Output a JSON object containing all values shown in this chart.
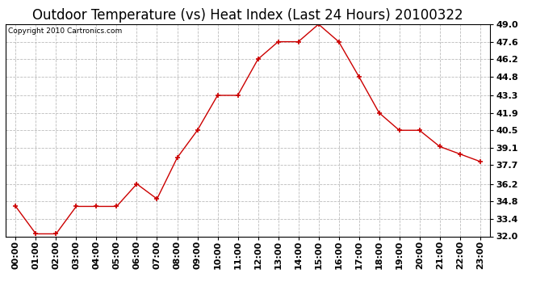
{
  "title": "Outdoor Temperature (vs) Heat Index (Last 24 Hours) 20100322",
  "copyright": "Copyright 2010 Cartronics.com",
  "x_labels": [
    "00:00",
    "01:00",
    "02:00",
    "03:00",
    "04:00",
    "05:00",
    "06:00",
    "07:00",
    "08:00",
    "09:00",
    "10:00",
    "11:00",
    "12:00",
    "13:00",
    "14:00",
    "15:00",
    "16:00",
    "17:00",
    "18:00",
    "19:00",
    "20:00",
    "21:00",
    "22:00",
    "23:00"
  ],
  "y_values": [
    34.4,
    32.2,
    32.2,
    34.4,
    34.4,
    34.4,
    36.2,
    35.0,
    38.3,
    40.5,
    43.3,
    43.3,
    46.2,
    47.6,
    47.6,
    49.0,
    47.6,
    44.8,
    41.9,
    40.5,
    40.5,
    39.2,
    38.6,
    38.0
  ],
  "line_color": "#cc0000",
  "marker": "+",
  "marker_color": "#cc0000",
  "marker_size": 5,
  "background_color": "#ffffff",
  "plot_bg_color": "#ffffff",
  "grid_color": "#bbbbbb",
  "y_min": 32.0,
  "y_max": 49.0,
  "y_ticks": [
    32.0,
    33.4,
    34.8,
    36.2,
    37.7,
    39.1,
    40.5,
    41.9,
    43.3,
    44.8,
    46.2,
    47.6,
    49.0
  ],
  "title_fontsize": 12,
  "tick_fontsize": 8,
  "copyright_fontsize": 6.5
}
